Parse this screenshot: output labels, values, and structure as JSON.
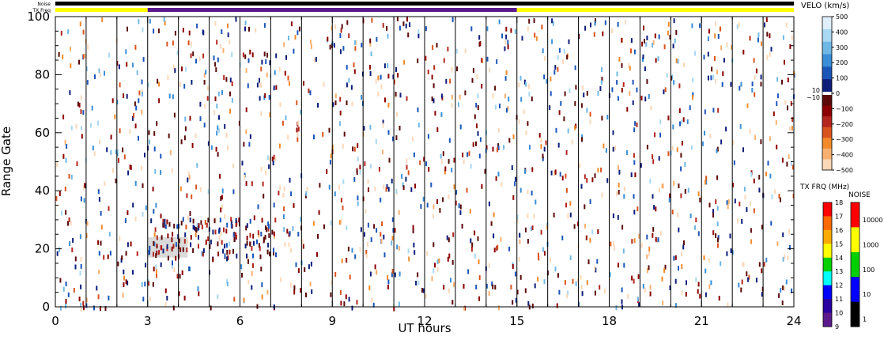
{
  "chart_data": {
    "type": "heatmap",
    "xlabel": "UT hours",
    "ylabel": "Range Gate",
    "xlim": [
      0,
      24
    ],
    "ylim": [
      0,
      100
    ],
    "xticks": [
      0,
      3,
      6,
      9,
      12,
      15,
      18,
      21,
      24
    ],
    "yticks": [
      0,
      20,
      40,
      60,
      80,
      100
    ],
    "scan_boundaries_ut": [
      1.0,
      2.0,
      3.0,
      4.0,
      5.0,
      6.0,
      7.0,
      8.0,
      9.0,
      10.0,
      11.0,
      12.0,
      13.0,
      14.0,
      15.0,
      16.0,
      17.0,
      18.0,
      19.0,
      20.0,
      21.0,
      22.0,
      23.0
    ],
    "status_bars": {
      "noise_label": "Noise",
      "txfreq_label": "TX Freq",
      "noise": [
        {
          "start": 0,
          "end": 24,
          "color": "#000000"
        }
      ],
      "txfreq": [
        {
          "start": 0,
          "end": 3,
          "color": "#ffff00"
        },
        {
          "start": 3,
          "end": 15,
          "color": "#5a1a8c"
        },
        {
          "start": 15,
          "end": 24,
          "color": "#ffff00"
        }
      ]
    },
    "ground_scatter_band": {
      "ut_start": 3.0,
      "ut_end": 4.3,
      "gate_min": 17,
      "gate_max": 24,
      "color": "#bbbbbb"
    },
    "velocity_scale": {
      "title": "VELO (km/s)",
      "ticks": [
        "500",
        "400",
        "300",
        "200",
        "100",
        "0",
        "−100",
        "−200",
        "−300",
        "−400",
        "−500"
      ],
      "side_labels": [
        "10",
        "−10"
      ],
      "colors": [
        "#dff0fb",
        "#a8d8f2",
        "#6fb8e5",
        "#3a8ed6",
        "#1b55b8",
        "#0d1d7a",
        "#5a0a0a",
        "#8b0000",
        "#b3261e",
        "#d9531e",
        "#f08a2a",
        "#f8b070",
        "#fbd8b8"
      ]
    },
    "txfreq_scale": {
      "title": "TX FRQ (MHz)",
      "ticks": [
        "18",
        "17",
        "16",
        "15",
        "14",
        "13",
        "12",
        "11",
        "10",
        "9"
      ],
      "colors": [
        "#ff0000",
        "#ff6a00",
        "#ffaa00",
        "#ffff00",
        "#00d000",
        "#00ffff",
        "#0000ff",
        "#2a00a0",
        "#5a1a8c"
      ]
    },
    "noise_scale": {
      "title": "NOISE",
      "ticks": [
        "10000",
        "1000",
        "100",
        "10",
        "1"
      ],
      "colors": [
        "#ff0000",
        "#ffff00",
        "#00d000",
        "#0000ff",
        "#000000"
      ]
    }
  }
}
